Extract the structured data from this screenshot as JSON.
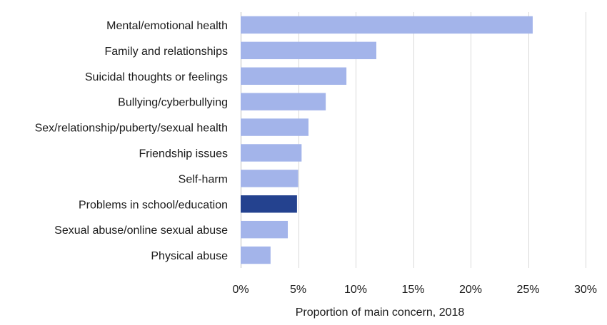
{
  "chart_data": {
    "type": "bar",
    "orientation": "horizontal",
    "categories": [
      "Mental/emotional health ",
      "Family and relationships",
      "Suicidal thoughts or feelings",
      "Bullying/cyberbullying",
      "Sex/relationship/puberty/sexual health",
      "Friendship issues",
      "Self-harm",
      "Problems in school/education",
      "Sexual abuse/online sexual abuse",
      "Physical abuse"
    ],
    "values": [
      25.4,
      11.8,
      9.2,
      7.4,
      5.9,
      5.3,
      5.0,
      4.9,
      4.1,
      2.6
    ],
    "highlight_index": 7,
    "xlim": [
      0,
      30
    ],
    "xticks": [
      0,
      5,
      10,
      15,
      20,
      25,
      30
    ],
    "xtick_labels": [
      "0%",
      "5%",
      "10%",
      "15%",
      "20%",
      "25%",
      "30%"
    ],
    "xlabel": "Proportion of main concern, 2018",
    "ylabel": "",
    "title": "",
    "grid": "vertical",
    "legend": "none",
    "colors": {
      "bar": "#a3b4ea",
      "highlight": "#24428f"
    }
  }
}
